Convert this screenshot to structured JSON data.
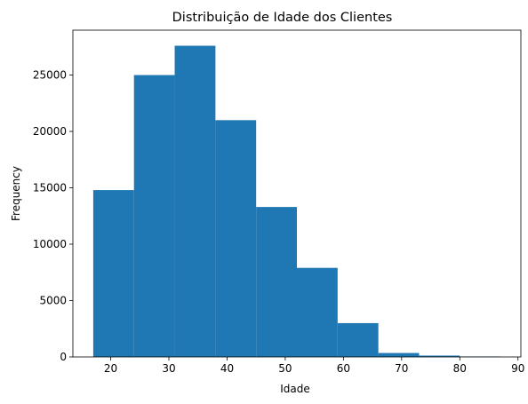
{
  "chart_data": {
    "type": "bar",
    "title": "Distribuição de Idade dos Clientes",
    "xlabel": "Idade",
    "ylabel": "Frequency",
    "bin_edges": [
      17,
      24,
      31,
      38,
      45,
      52,
      59,
      66,
      73,
      80,
      87
    ],
    "values": [
      14800,
      25000,
      27600,
      21000,
      13300,
      7900,
      3000,
      350,
      120,
      40
    ],
    "xlim": [
      13.5,
      90.5
    ],
    "ylim": [
      0,
      28980
    ],
    "x_ticks": [
      "20",
      "30",
      "40",
      "50",
      "60",
      "70",
      "80",
      "90"
    ],
    "y_ticks": [
      "0",
      "5000",
      "10000",
      "15000",
      "20000",
      "25000"
    ],
    "grid": false,
    "bar_color": "#1f77b4"
  }
}
